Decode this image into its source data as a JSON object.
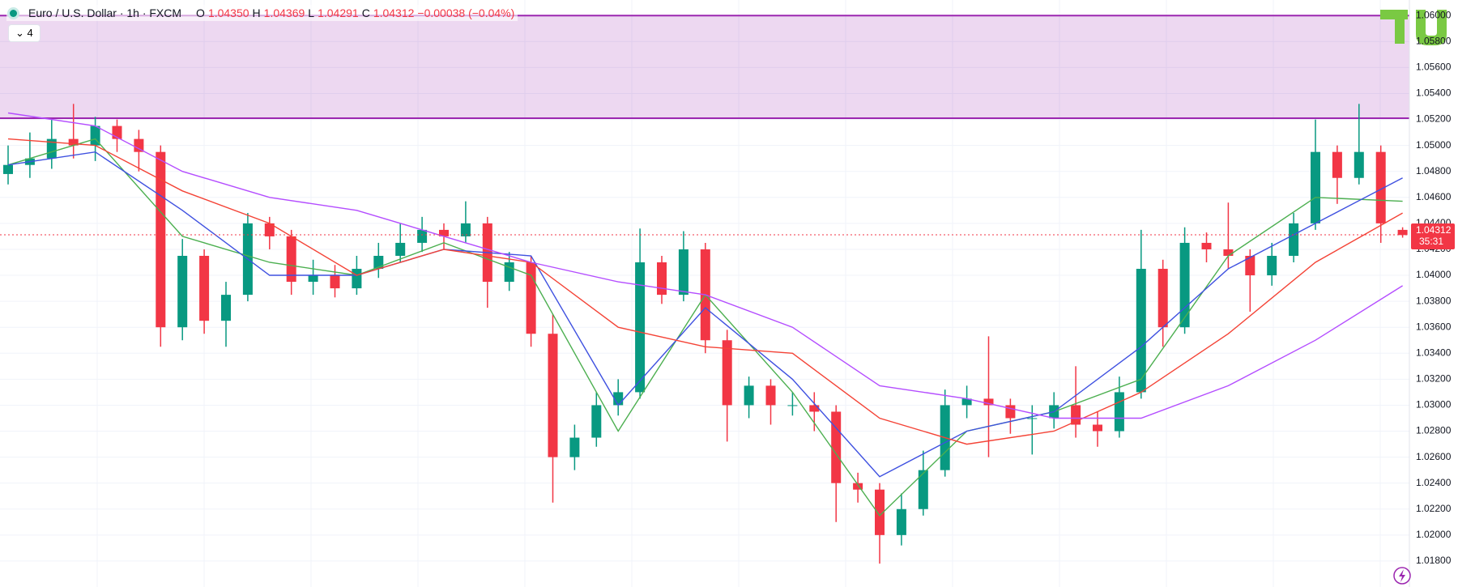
{
  "header": {
    "symbol": "Euro / U.S. Dollar · 1h · FXCM",
    "open_label": "O",
    "open": "1.04350",
    "high_label": "H",
    "high": "1.04369",
    "low_label": "L",
    "low": "1.04291",
    "close_label": "C",
    "close": "1.04312",
    "change": "−0.00038 (−0.04%)",
    "indicators": "4"
  },
  "chart_data": {
    "type": "candlestick",
    "up_color": "#089981",
    "down_color": "#f23645",
    "open": [
      1.0478,
      1.0485,
      1.049,
      1.0505,
      1.05,
      1.0515,
      1.0505,
      1.0495,
      1.036,
      1.0415,
      1.0365,
      1.0385,
      1.044,
      1.043,
      1.0395,
      1.04,
      1.039,
      1.0405,
      1.0415,
      1.0425,
      1.0435,
      1.043,
      1.044,
      1.0395,
      1.041,
      1.0355,
      1.026,
      1.0275,
      1.03,
      1.031,
      1.041,
      1.0385,
      1.042,
      1.035,
      1.03,
      1.0315,
      1.03,
      1.03,
      1.0295,
      1.024,
      1.0235,
      1.02,
      1.022,
      1.025,
      1.03,
      1.0305,
      1.03,
      1.029,
      1.029,
      1.03,
      1.0285,
      1.028,
      1.031,
      1.0405,
      1.036,
      1.0425,
      1.042,
      1.0415,
      1.04,
      1.0415,
      1.044,
      1.0495,
      1.0475,
      1.0495,
      1.0435
    ],
    "high": [
      1.05,
      1.051,
      1.052,
      1.0532,
      1.0522,
      1.052,
      1.0512,
      1.05,
      1.0428,
      1.042,
      1.0395,
      1.0448,
      1.0445,
      1.0435,
      1.0412,
      1.0408,
      1.0415,
      1.0425,
      1.044,
      1.0445,
      1.044,
      1.0457,
      1.0445,
      1.0418,
      1.0415,
      1.037,
      1.0285,
      1.031,
      1.032,
      1.0436,
      1.0415,
      1.0434,
      1.0425,
      1.0358,
      1.0322,
      1.032,
      1.031,
      1.031,
      1.03,
      1.0248,
      1.024,
      1.0232,
      1.0265,
      1.0312,
      1.0315,
      1.0353,
      1.0305,
      1.03,
      1.031,
      1.033,
      1.0295,
      1.0322,
      1.0435,
      1.0412,
      1.0437,
      1.0433,
      1.0456,
      1.042,
      1.0425,
      1.0448,
      1.052,
      1.05,
      1.0532,
      1.05,
      1.0437
    ],
    "low": [
      1.047,
      1.0475,
      1.0482,
      1.049,
      1.0488,
      1.0495,
      1.048,
      1.0345,
      1.035,
      1.0355,
      1.0345,
      1.038,
      1.042,
      1.0385,
      1.0385,
      1.0383,
      1.0385,
      1.0398,
      1.041,
      1.0418,
      1.042,
      1.0425,
      1.0375,
      1.0388,
      1.0345,
      1.0225,
      1.025,
      1.0268,
      1.0292,
      1.0305,
      1.0378,
      1.038,
      1.034,
      1.0272,
      1.029,
      1.0285,
      1.0292,
      1.028,
      1.021,
      1.0225,
      1.0178,
      1.0192,
      1.0215,
      1.0245,
      1.029,
      1.026,
      1.0278,
      1.0262,
      1.0282,
      1.0275,
      1.0268,
      1.0275,
      1.0305,
      1.0345,
      1.0355,
      1.041,
      1.0405,
      1.0372,
      1.0392,
      1.041,
      1.0435,
      1.0455,
      1.047,
      1.0425,
      1.0429
    ],
    "close": [
      1.0485,
      1.049,
      1.0505,
      1.05,
      1.0515,
      1.0505,
      1.0495,
      1.036,
      1.0415,
      1.0365,
      1.0385,
      1.044,
      1.043,
      1.0395,
      1.04,
      1.039,
      1.0405,
      1.0415,
      1.0425,
      1.0435,
      1.043,
      1.044,
      1.0395,
      1.041,
      1.0355,
      1.026,
      1.0275,
      1.03,
      1.031,
      1.041,
      1.0385,
      1.042,
      1.035,
      1.03,
      1.0315,
      1.03,
      1.03,
      1.0295,
      1.024,
      1.0235,
      1.02,
      1.022,
      1.025,
      1.03,
      1.0305,
      1.03,
      1.029,
      1.029,
      1.03,
      1.0285,
      1.028,
      1.031,
      1.0405,
      1.036,
      1.0425,
      1.042,
      1.0415,
      1.04,
      1.0415,
      1.044,
      1.0495,
      1.0475,
      1.0495,
      1.044,
      1.0431
    ],
    "ma_x": [
      0,
      4,
      8,
      12,
      16,
      20,
      24,
      28,
      32,
      36,
      40,
      44,
      48,
      52,
      56,
      60,
      64
    ],
    "lines": [
      {
        "color": "#4caf50",
        "values": [
          1.0485,
          1.0505,
          1.043,
          1.041,
          1.04,
          1.0425,
          1.04,
          1.028,
          1.0385,
          1.031,
          1.0215,
          1.028,
          1.0295,
          1.032,
          1.0415,
          1.046,
          1.0457
        ]
      },
      {
        "color": "#3f51e0",
        "values": [
          1.0485,
          1.0495,
          1.045,
          1.04,
          1.04,
          1.042,
          1.0415,
          1.03,
          1.0375,
          1.032,
          1.0245,
          1.028,
          1.0295,
          1.0345,
          1.0405,
          1.044,
          1.0475
        ]
      },
      {
        "color": "#f44336",
        "values": [
          1.0505,
          1.05,
          1.0465,
          1.044,
          1.04,
          1.042,
          1.041,
          1.036,
          1.0345,
          1.034,
          1.029,
          1.027,
          1.028,
          1.031,
          1.0355,
          1.041,
          1.0448
        ]
      },
      {
        "color": "#b44dff",
        "values": [
          1.0525,
          1.0515,
          1.048,
          1.046,
          1.045,
          1.043,
          1.041,
          1.0395,
          1.0385,
          1.036,
          1.0315,
          1.0305,
          1.029,
          1.029,
          1.0315,
          1.035,
          1.0392
        ]
      }
    ],
    "zone": [
      1.0521,
      1.06
    ],
    "zone_color": "#9c27b0",
    "last_price": {
      "value": 1.04312,
      "label": "1.04312"
    },
    "countdown": "35:31",
    "ylim": [
      1.016,
      1.0612
    ],
    "yticks": [
      {
        "value": 1.018,
        "label": "1.01800"
      },
      {
        "value": 1.02,
        "label": "1.02000"
      },
      {
        "value": 1.022,
        "label": "1.02200"
      },
      {
        "value": 1.024,
        "label": "1.02400"
      },
      {
        "value": 1.026,
        "label": "1.02600"
      },
      {
        "value": 1.028,
        "label": "1.02800"
      },
      {
        "value": 1.03,
        "label": "1.03000"
      },
      {
        "value": 1.032,
        "label": "1.03200"
      },
      {
        "value": 1.034,
        "label": "1.03400"
      },
      {
        "value": 1.036,
        "label": "1.03600"
      },
      {
        "value": 1.038,
        "label": "1.03800"
      },
      {
        "value": 1.04,
        "label": "1.04000"
      },
      {
        "value": 1.042,
        "label": "1.04200"
      },
      {
        "value": 1.044,
        "label": "1.04400"
      },
      {
        "value": 1.046,
        "label": "1.04600"
      },
      {
        "value": 1.048,
        "label": "1.04800"
      },
      {
        "value": 1.05,
        "label": "1.05000"
      },
      {
        "value": 1.052,
        "label": "1.05200"
      },
      {
        "value": 1.054,
        "label": "1.05400"
      },
      {
        "value": 1.056,
        "label": "1.05600"
      },
      {
        "value": 1.058,
        "label": "1.05800"
      },
      {
        "value": 1.06,
        "label": "1.06000"
      }
    ],
    "grid": true
  }
}
